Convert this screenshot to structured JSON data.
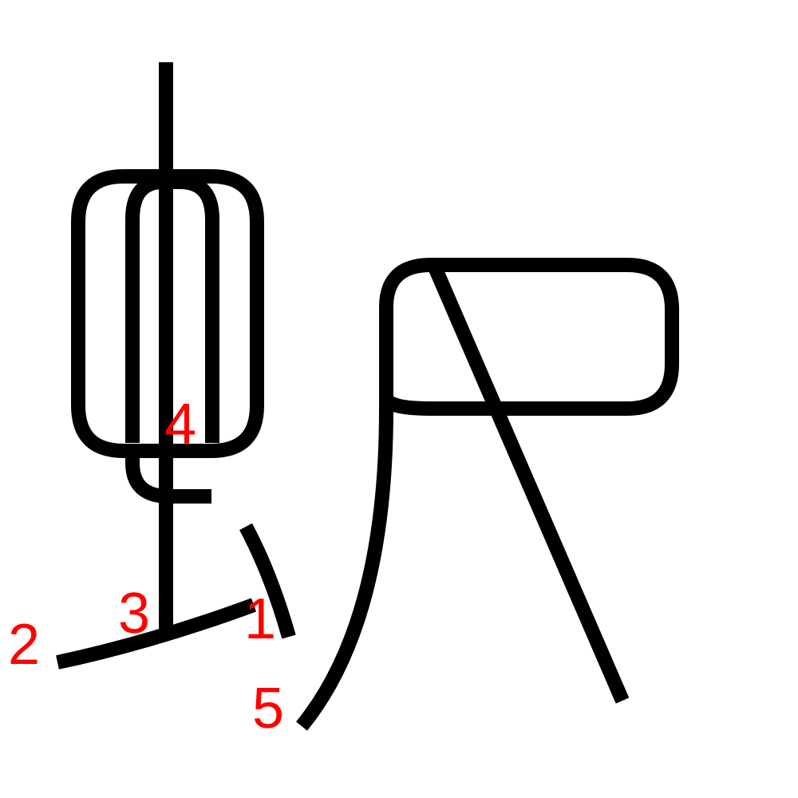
{
  "colors": {
    "stroke": "#000000",
    "label": "#ff0000",
    "background": "#ffffff"
  },
  "stroke_labels": [
    "1",
    "2",
    "3",
    "4",
    "5"
  ]
}
